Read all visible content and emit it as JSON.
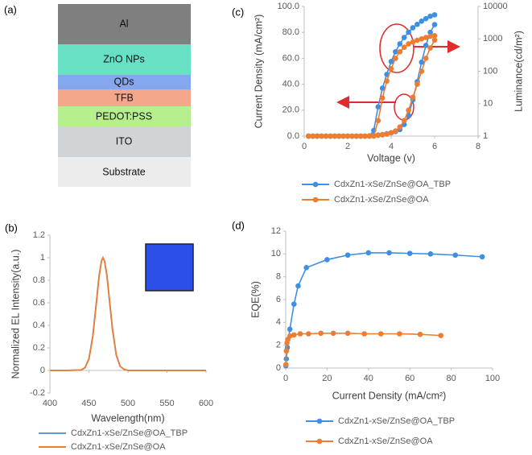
{
  "diagram": {
    "label": "(a)",
    "layers": [
      "Al",
      "ZnO NPs",
      "QDs",
      "TFB",
      "PEDOT:PSS",
      "ITO",
      "Substrate"
    ]
  },
  "chart_data": [
    {
      "type": "line",
      "label": "(b)",
      "xlabel": "Wavelength(nm)",
      "ylabel": "Normalized EL Intensity(a.u.)",
      "x": [
        400,
        420,
        440,
        445,
        450,
        455,
        460,
        463,
        466,
        468,
        470,
        473,
        476,
        480,
        485,
        490,
        495,
        500,
        520,
        550,
        600
      ],
      "series": [
        {
          "name": "CdxZn1-xSe/ZnSe@OA_TBP",
          "color": "#5b9bd5",
          "values": [
            0,
            0,
            0.004,
            0.025,
            0.105,
            0.31,
            0.64,
            0.84,
            0.97,
            1,
            0.97,
            0.84,
            0.64,
            0.37,
            0.135,
            0.035,
            0.01,
            0,
            0,
            0,
            0
          ]
        },
        {
          "name": "CdxZn1-xSe/ZnSe@OA",
          "color": "#ed7d31",
          "values": [
            0,
            0,
            0.004,
            0.024,
            0.1,
            0.3,
            0.63,
            0.83,
            0.97,
            1,
            0.97,
            0.85,
            0.65,
            0.38,
            0.14,
            0.036,
            0.01,
            0,
            0,
            0,
            0
          ]
        }
      ],
      "xlim": [
        400,
        600
      ],
      "xticks": [
        400,
        450,
        500,
        550,
        600
      ],
      "ylim": [
        -0.2,
        1.2
      ],
      "yticks": [
        -0.2,
        0,
        0.2,
        0.4,
        0.6,
        0.8,
        1,
        1.2
      ],
      "markers": false
    },
    {
      "type": "line",
      "label": "(c)",
      "xlabel": "Voltage (v)",
      "ylabel": "Current Density (mA/cm²)",
      "y2label": "Luminance(cd/m²)",
      "x": [
        0.2,
        0.4,
        0.6,
        0.8,
        1.0,
        1.2,
        1.4,
        1.6,
        1.8,
        2.0,
        2.2,
        2.4,
        2.6,
        2.8,
        3.0,
        3.2,
        3.4,
        3.6,
        3.8,
        4.0,
        4.2,
        4.4,
        4.6,
        4.8,
        5.0,
        5.2,
        5.4,
        5.6,
        5.8,
        6.0
      ],
      "series": [
        {
          "name": "CdxZn1-xSe/ZnSe@OA_TBP",
          "color": "#3d8fe3",
          "values": [
            0,
            0,
            0,
            0,
            0,
            0,
            0,
            0,
            0,
            0,
            0,
            0,
            0,
            0,
            0.2,
            0.5,
            0.8,
            1.2,
            1.8,
            2.5,
            3.5,
            5,
            9,
            16,
            28,
            42,
            57,
            70,
            80,
            86
          ]
        },
        {
          "name": "CdxZn1-xSe/ZnSe@OA",
          "color": "#ed7d31",
          "values": [
            0,
            0,
            0,
            0,
            0,
            0,
            0,
            0,
            0,
            0,
            0,
            0,
            0,
            0,
            0.1,
            0.3,
            0.6,
            1,
            1.5,
            2.5,
            4,
            7,
            12,
            20,
            30,
            40,
            50,
            60,
            68,
            74
          ]
        },
        {
          "color": "#3d8fe3",
          "axis": "y2",
          "values": [
            1,
            1,
            1,
            1,
            1,
            1,
            1,
            1,
            1,
            1,
            1,
            1,
            1,
            1,
            1,
            1.5,
            8,
            30,
            80,
            200,
            400,
            700,
            1100,
            1600,
            2200,
            2800,
            3500,
            4200,
            5000,
            5500
          ]
        },
        {
          "color": "#ed7d31",
          "axis": "y2",
          "values": [
            1,
            1,
            1,
            1,
            1,
            1,
            1,
            1,
            1,
            1,
            1,
            1,
            1,
            1,
            1,
            1,
            3,
            15,
            50,
            120,
            250,
            400,
            550,
            700,
            800,
            900,
            1000,
            1100,
            1200,
            1250
          ]
        }
      ],
      "xlim": [
        0,
        8
      ],
      "xticks": [
        0,
        2,
        4,
        6,
        8
      ],
      "ylim": [
        0,
        100
      ],
      "yticks": [
        {
          "value": 0,
          "label": "0.0"
        },
        {
          "value": 20,
          "label": "20.0"
        },
        {
          "value": 40,
          "label": "40.0"
        },
        {
          "value": 60,
          "label": "60.0"
        },
        {
          "value": 80,
          "label": "80.0"
        },
        {
          "value": 100,
          "label": "100.0"
        }
      ],
      "y2lim": [
        1,
        10000
      ],
      "y2ticks": [
        1,
        10,
        100,
        1000,
        10000
      ],
      "y2log": true,
      "markers": true
    },
    {
      "type": "line",
      "label": "(d)",
      "xlabel": "Current Density (mA/cm²)",
      "ylabel": "EQE(%)",
      "series": [
        {
          "name": "CdxZn1-xSe/ZnSe@OA_TBP",
          "color": "#3d8fe3",
          "x": [
            0.1,
            0.3,
            0.8,
            2,
            4,
            6,
            10,
            20,
            30,
            40,
            50,
            60,
            70,
            82,
            95
          ],
          "values": [
            0.2,
            0.8,
            1.8,
            3.4,
            5.6,
            7.2,
            8.8,
            9.5,
            9.9,
            10.1,
            10.1,
            10.05,
            10,
            9.9,
            9.75
          ]
        },
        {
          "name": "CdxZn1-xSe/ZnSe@OA",
          "color": "#ed7d31",
          "x": [
            0.1,
            0.3,
            0.6,
            1,
            2,
            4,
            7,
            11,
            17,
            23,
            30,
            38,
            46,
            55,
            65,
            75
          ],
          "values": [
            0.3,
            1.5,
            2.2,
            2.5,
            2.8,
            2.9,
            3,
            3,
            3.05,
            3.05,
            3.05,
            3,
            3,
            3,
            2.95,
            2.85
          ]
        }
      ],
      "xlim": [
        0,
        100
      ],
      "xticks": [
        0,
        20,
        40,
        60,
        80,
        100
      ],
      "ylim": [
        0,
        12
      ],
      "yticks": [
        0,
        2,
        4,
        6,
        8,
        10,
        12
      ],
      "markers": true
    }
  ]
}
